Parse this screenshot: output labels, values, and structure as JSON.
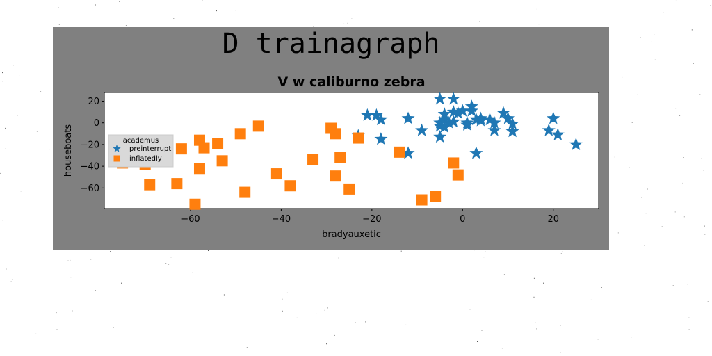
{
  "suptitle": "D trainagraph",
  "chart_data": {
    "type": "scatter",
    "title": "V w caliburno zebra",
    "xlabel": "bradyauxetic",
    "ylabel": "houseboats",
    "xlim": [
      -79,
      30
    ],
    "ylim": [
      -79,
      28
    ],
    "xticks": [
      -60,
      -40,
      -20,
      0,
      20
    ],
    "yticks": [
      -60,
      -40,
      -20,
      0,
      20
    ],
    "xtick_labels": [
      "−60",
      "−40",
      "−20",
      "0",
      "20"
    ],
    "ytick_labels": [
      "−60",
      "−40",
      "−20",
      "0",
      "20"
    ],
    "grid": false,
    "legend": {
      "title": "academus",
      "placement": "center-left"
    },
    "colors": {
      "figure_bg": "#808080",
      "axes_bg": "#ffffff",
      "preinterrupt": "#1f77b4",
      "inflatedly": "#ff7f0e"
    },
    "series": [
      {
        "name": "preinterrupt",
        "marker": "star",
        "x": [
          -21,
          -19,
          -18,
          -18,
          -12,
          -23,
          -12,
          -9,
          -5,
          -5,
          -5,
          -4,
          -5,
          -4,
          -3,
          -2,
          -2,
          -1,
          0,
          1,
          1,
          2,
          2,
          3,
          4,
          4,
          6,
          7,
          7,
          9,
          10,
          11,
          11,
          19,
          20,
          21,
          25,
          3,
          -4,
          -2
        ],
        "y": [
          7,
          7,
          3,
          -15,
          4,
          -12,
          -28,
          -7,
          22,
          0,
          -3,
          8,
          -13,
          3,
          0,
          22,
          10,
          9,
          11,
          -2,
          0,
          15,
          11,
          3,
          4,
          2,
          3,
          -7,
          0,
          9,
          4,
          -1,
          -8,
          -7,
          4,
          -11,
          -20,
          -28,
          -4,
          1
        ]
      },
      {
        "name": "inflatedly",
        "marker": "square",
        "x": [
          -75,
          -70,
          -69,
          -63,
          -62,
          -59,
          -58,
          -58,
          -57,
          -54,
          -53,
          -49,
          -48,
          -45,
          -41,
          -38,
          -33,
          -29,
          -28,
          -28,
          -27,
          -25,
          -23,
          -14,
          -9,
          -6,
          -2,
          -1
        ],
        "y": [
          -37,
          -38,
          -57,
          -56,
          -24,
          -75,
          -16,
          -42,
          -23,
          -19,
          -35,
          -10,
          -64,
          -3,
          -47,
          -58,
          -34,
          -5,
          -10,
          -49,
          -32,
          -61,
          -14,
          -27,
          -71,
          -68,
          -37,
          -48
        ]
      }
    ]
  }
}
